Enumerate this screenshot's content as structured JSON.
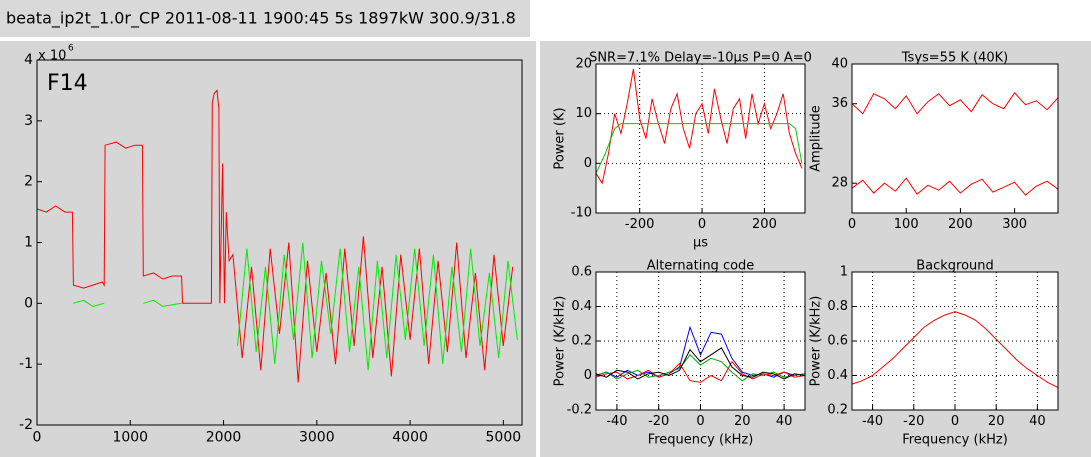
{
  "header": {
    "title": "beata_ip2t_1.0r_CP 2011-08-11 1900:45 5s 1897kW 300.9/31.8"
  },
  "chart_data": [
    {
      "type": "line",
      "annotation": "F14",
      "multiplier": "x 10",
      "multiplier_exponent": "6",
      "xlim": [
        0,
        5200
      ],
      "xticks": [
        0,
        1000,
        2000,
        3000,
        4000,
        5000
      ],
      "ylim": [
        -2,
        4
      ],
      "yticks": [
        -2,
        -1,
        0,
        1,
        2,
        3,
        4
      ],
      "grid": false,
      "series": [
        {
          "color": "#ff0000",
          "x": [
            0,
            100,
            200,
            300,
            380,
            390,
            500,
            600,
            700,
            720,
            730,
            850,
            950,
            1050,
            1130,
            1140,
            1250,
            1350,
            1450,
            1550,
            1560,
            1700,
            1870,
            1880,
            1900,
            1930,
            1950,
            1960,
            1990,
            2010,
            2030,
            2060,
            2100,
            2200,
            2300,
            2400,
            2500,
            2600,
            2700,
            2800,
            2900,
            3000,
            3100,
            3200,
            3300,
            3400,
            3500,
            3600,
            3700,
            3800,
            3900,
            4000,
            4100,
            4200,
            4300,
            4400,
            4500,
            4600,
            4700,
            4800,
            4900,
            5000,
            5100
          ],
          "values": [
            1.55,
            1.5,
            1.6,
            1.5,
            1.5,
            0.3,
            0.25,
            0.3,
            0.35,
            0.3,
            2.6,
            2.65,
            2.55,
            2.6,
            2.6,
            0.45,
            0.5,
            0.4,
            0.45,
            0.45,
            0,
            0,
            0,
            3.3,
            3.45,
            3.5,
            3.2,
            0,
            2.3,
            0,
            1.5,
            0.7,
            0.8,
            -0.9,
            0.6,
            -1.1,
            0.9,
            -0.5,
            1.0,
            -1.3,
            0.7,
            -0.8,
            0.5,
            -1.0,
            0.9,
            -0.7,
            1.1,
            -0.9,
            0.6,
            -1.2,
            0.8,
            -0.6,
            0.9,
            -1.0,
            0.7,
            -0.8,
            1.0,
            -0.9,
            0.5,
            -1.1,
            0.8,
            -0.7,
            0.6
          ]
        },
        {
          "color": "#00ee00",
          "x": [
            390,
            500,
            600,
            720,
            900,
            1140,
            1250,
            1350,
            1550,
            1800,
            2150,
            2250,
            2350,
            2450,
            2550,
            2650,
            2750,
            2850,
            2950,
            3050,
            3150,
            3250,
            3350,
            3450,
            3550,
            3650,
            3750,
            3850,
            3950,
            4050,
            4150,
            4250,
            4350,
            4450,
            4550,
            4650,
            4750,
            4850,
            4950,
            5050,
            5150
          ],
          "values": [
            0,
            0.05,
            -0.05,
            0,
            null,
            0,
            0.05,
            -0.05,
            0,
            null,
            -0.7,
            0.9,
            -0.8,
            0.6,
            -1.0,
            0.8,
            -0.6,
            1.0,
            -0.9,
            0.7,
            -0.5,
            0.9,
            -0.8,
            0.6,
            -1.1,
            0.7,
            -0.9,
            0.8,
            -0.6,
            0.9,
            -0.7,
            0.8,
            -1.0,
            0.6,
            -0.8,
            0.9,
            -0.7,
            0.5,
            -0.9,
            0.7,
            -0.6
          ]
        }
      ]
    },
    {
      "type": "line",
      "title": "SNR=7.1% Delay=-10µs P=0 A=0",
      "x_label": "µs",
      "y_label": "Power (K)",
      "xlim": [
        -340,
        330
      ],
      "xticks": [
        -200,
        0,
        200
      ],
      "ylim": [
        -10,
        20
      ],
      "yticks": [
        -10,
        0,
        10,
        20
      ],
      "grid": true,
      "series": [
        {
          "color": "#ff0000",
          "x": [
            -340,
            -320,
            -300,
            -280,
            -260,
            -240,
            -220,
            -200,
            -180,
            -160,
            -140,
            -120,
            -100,
            -80,
            -60,
            -40,
            -20,
            0,
            20,
            40,
            60,
            80,
            100,
            120,
            140,
            160,
            180,
            200,
            220,
            240,
            260,
            280,
            300,
            320
          ],
          "values": [
            -2,
            -4,
            2,
            10,
            6,
            12,
            19,
            9,
            5,
            13,
            8,
            4,
            11,
            14,
            7,
            3,
            10,
            12,
            6,
            15,
            9,
            4,
            11,
            13,
            5,
            14,
            8,
            12,
            7,
            10,
            14,
            6,
            2,
            -1
          ]
        },
        {
          "color": "#00cc00",
          "x": [
            -340,
            -310,
            -280,
            -260,
            280,
            300,
            320
          ],
          "values": [
            -2,
            2,
            7,
            8,
            8,
            7,
            0
          ]
        }
      ]
    },
    {
      "type": "line",
      "title": "Tsys=55 K (40K)",
      "y_label": "Amplitude",
      "xlim": [
        0,
        380
      ],
      "xticks": [
        0,
        100,
        200,
        300
      ],
      "ylim": [
        25,
        40
      ],
      "yticks": [
        28,
        36,
        40
      ],
      "grid": false,
      "x": [
        0,
        20,
        40,
        60,
        80,
        100,
        120,
        140,
        160,
        180,
        200,
        220,
        240,
        260,
        280,
        300,
        320,
        340,
        360,
        380
      ],
      "series": [
        {
          "color": "#ff0000",
          "values": [
            36,
            35,
            37,
            36.5,
            35.5,
            36.8,
            35,
            36.2,
            37,
            35.8,
            36.4,
            35.2,
            36.9,
            36,
            35.5,
            37.1,
            35.9,
            36.3,
            35.4,
            36.6
          ]
        },
        {
          "color": "#ff0000",
          "values": [
            27.5,
            28.3,
            27,
            28,
            27.2,
            28.5,
            26.9,
            27.8,
            27.3,
            28.2,
            27,
            27.9,
            28.4,
            27.1,
            27.6,
            28.1,
            26.8,
            27.7,
            28.2,
            27.4
          ]
        }
      ]
    },
    {
      "type": "line",
      "title": "Alternating code",
      "x_label": "Frequency (kHz)",
      "y_label": "Power (K/kHz)",
      "xlim": [
        -50,
        50
      ],
      "xticks": [
        -40,
        -20,
        0,
        20,
        40
      ],
      "ylim": [
        -0.2,
        0.6
      ],
      "yticks": [
        -0.2,
        0,
        0.2,
        0.4,
        0.6
      ],
      "grid": true,
      "x": [
        -50,
        -45,
        -40,
        -35,
        -30,
        -25,
        -20,
        -15,
        -10,
        -5,
        0,
        5,
        10,
        15,
        20,
        25,
        30,
        35,
        40,
        45,
        50
      ],
      "series": [
        {
          "color": "#0000ff",
          "values": [
            0,
            0.02,
            -0.01,
            0.03,
            0,
            0.02,
            -0.01,
            0.01,
            0.05,
            0.28,
            0.12,
            0.25,
            0.24,
            0.1,
            0.02,
            0,
            0.01,
            -0.01,
            0.02,
            0,
            0.01
          ]
        },
        {
          "color": "#00aa00",
          "values": [
            0,
            0.02,
            -0.02,
            0.01,
            0.03,
            -0.01,
            0,
            0.02,
            0.04,
            0.12,
            0.06,
            0.1,
            0.08,
            0.02,
            -0.03,
            0.01,
            0,
            0.02,
            -0.01,
            0,
            0.01
          ]
        },
        {
          "color": "#ff0000",
          "values": [
            -0.01,
            0.01,
            0.02,
            -0.02,
            0,
            0.03,
            -0.01,
            0.01,
            0.07,
            -0.03,
            -0.04,
            0,
            -0.03,
            0.08,
            0.01,
            -0.02,
            0.01,
            0,
            0.02,
            -0.01,
            0
          ]
        },
        {
          "color": "#000000",
          "values": [
            0.01,
            -0.01,
            0.03,
            0.02,
            -0.02,
            0.01,
            0.02,
            0,
            0.03,
            0.15,
            0.08,
            0.12,
            0.16,
            0.05,
            0,
            -0.01,
            0.02,
            0.01,
            -0.02,
            0.01,
            0
          ]
        }
      ]
    },
    {
      "type": "line",
      "title": "Background",
      "x_label": "Frequency (kHz)",
      "y_label": "Power (K/kHz)",
      "xlim": [
        -50,
        50
      ],
      "xticks": [
        -40,
        -20,
        0,
        20,
        40
      ],
      "ylim": [
        0.2,
        1
      ],
      "yticks": [
        0.2,
        0.4,
        0.6,
        0.8,
        1
      ],
      "grid": true,
      "x": [
        -50,
        -45,
        -40,
        -35,
        -30,
        -25,
        -20,
        -15,
        -10,
        -5,
        0,
        5,
        10,
        15,
        20,
        25,
        30,
        35,
        40,
        45,
        50
      ],
      "series": [
        {
          "color": "#ff0000",
          "values": [
            0.35,
            0.37,
            0.4,
            0.45,
            0.5,
            0.56,
            0.62,
            0.68,
            0.72,
            0.75,
            0.77,
            0.75,
            0.72,
            0.67,
            0.61,
            0.55,
            0.49,
            0.44,
            0.4,
            0.36,
            0.33
          ]
        }
      ]
    }
  ]
}
